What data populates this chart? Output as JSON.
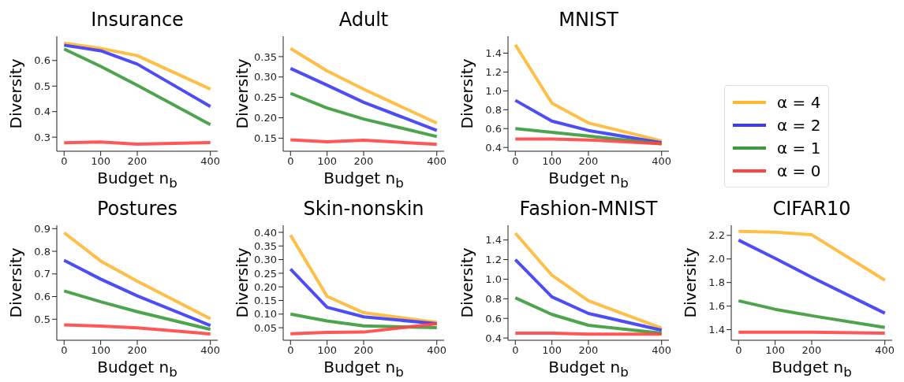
{
  "chart_data": [
    {
      "type": "line",
      "title": "Insurance",
      "xlabel": "Budget  n$_{b}$",
      "ylabel": "Diversity",
      "x": [
        0,
        100,
        200,
        400
      ],
      "xlim": [
        -20,
        420
      ],
      "xticks": [
        0,
        100,
        200,
        400
      ],
      "ylim": [
        0.245,
        0.695
      ],
      "yticks": [
        0.3,
        0.4,
        0.5,
        0.6
      ],
      "series": [
        {
          "color": "#ffb733",
          "values": [
            0.668,
            0.647,
            0.619,
            0.488
          ]
        },
        {
          "color": "#3a3af5",
          "values": [
            0.66,
            0.638,
            0.586,
            0.42
          ]
        },
        {
          "color": "#3a9a3a",
          "values": [
            0.645,
            0.577,
            0.503,
            0.349
          ]
        },
        {
          "color": "#ff4444",
          "values": [
            0.278,
            0.281,
            0.273,
            0.279
          ]
        }
      ]
    },
    {
      "type": "line",
      "title": "Adult",
      "xlabel": "Budget  n$_{b}$",
      "ylabel": "Diversity",
      "x": [
        0,
        100,
        200,
        400
      ],
      "xlim": [
        -20,
        420
      ],
      "xticks": [
        0,
        100,
        200,
        400
      ],
      "ylim": [
        0.118,
        0.4
      ],
      "yticks": [
        0.15,
        {
          "value": 0.2,
          "label": "0.20"
        },
        0.25,
        {
          "value": 0.3,
          "label": "0.30"
        },
        0.35
      ],
      "series": [
        {
          "color": "#ffb733",
          "values": [
            0.37,
            0.315,
            0.27,
            0.187
          ]
        },
        {
          "color": "#3a3af5",
          "values": [
            0.321,
            0.28,
            0.238,
            0.169
          ]
        },
        {
          "color": "#3a9a3a",
          "values": [
            0.26,
            0.224,
            0.197,
            0.154
          ]
        },
        {
          "color": "#ff4444",
          "values": [
            0.146,
            0.141,
            0.145,
            0.135
          ]
        }
      ]
    },
    {
      "type": "line",
      "title": "MNIST",
      "xlabel": "Budget  n$_{b}$",
      "ylabel": "Diversity",
      "legend": "right",
      "x": [
        0,
        100,
        200,
        400
      ],
      "xlim": [
        -20,
        420
      ],
      "xticks": [
        0,
        100,
        200,
        400
      ],
      "ylim": [
        0.36,
        1.58
      ],
      "yticks": [
        0.4,
        0.6,
        0.8,
        {
          "value": 1,
          "label": "1.0"
        },
        1.2,
        1.4
      ],
      "series": [
        {
          "name": "α = 4",
          "color": "#ffb733",
          "values": [
            1.49,
            0.87,
            0.66,
            0.47
          ]
        },
        {
          "name": "α = 2",
          "color": "#3a3af5",
          "values": [
            0.9,
            0.68,
            0.58,
            0.45
          ]
        },
        {
          "name": "α = 1",
          "color": "#3a9a3a",
          "values": [
            0.6,
            0.56,
            0.52,
            0.44
          ]
        },
        {
          "name": "α = 0",
          "color": "#ff4444",
          "values": [
            0.49,
            0.49,
            0.48,
            0.44
          ]
        }
      ]
    },
    {
      "type": "line",
      "title": "Postures",
      "xlabel": "Budget  n$_{b}$",
      "ylabel": "Diversity",
      "x": [
        0,
        100,
        200,
        400
      ],
      "xlim": [
        -20,
        420
      ],
      "xticks": [
        0,
        100,
        200,
        400
      ],
      "ylim": [
        0.407,
        0.915
      ],
      "yticks": [
        0.5,
        0.6,
        0.7,
        0.8,
        0.9
      ],
      "series": [
        {
          "color": "#ffb733",
          "values": [
            0.882,
            0.757,
            0.668,
            0.502
          ]
        },
        {
          "color": "#3a3af5",
          "values": [
            0.76,
            0.677,
            0.603,
            0.472
          ]
        },
        {
          "color": "#3a9a3a",
          "values": [
            0.625,
            0.577,
            0.533,
            0.455
          ]
        },
        {
          "color": "#ff4444",
          "values": [
            0.475,
            0.47,
            0.462,
            0.435
          ]
        }
      ]
    },
    {
      "type": "line",
      "title": "Skin-nonskin",
      "xlabel": "Budget  n$_{b}$",
      "ylabel": "Diversity",
      "x": [
        0,
        100,
        200,
        400
      ],
      "xlim": [
        -20,
        420
      ],
      "xticks": [
        0,
        100,
        200,
        400
      ],
      "ylim": [
        0.004,
        0.426
      ],
      "yticks": [
        0.05,
        {
          "value": 0.1,
          "label": "0.10"
        },
        0.15,
        {
          "value": 0.2,
          "label": "0.20"
        },
        0.25,
        {
          "value": 0.3,
          "label": "0.30"
        },
        0.35,
        {
          "value": 0.4,
          "label": "0.40"
        }
      ],
      "series": [
        {
          "color": "#ffb733",
          "values": [
            0.39,
            0.165,
            0.105,
            0.07
          ]
        },
        {
          "color": "#3a3af5",
          "values": [
            0.265,
            0.125,
            0.09,
            0.065
          ]
        },
        {
          "color": "#3a9a3a",
          "values": [
            0.1,
            0.075,
            0.057,
            0.05
          ]
        },
        {
          "color": "#ff4444",
          "values": [
            0.028,
            0.033,
            0.034,
            0.065
          ]
        }
      ]
    },
    {
      "type": "line",
      "title": "Fashion-MNIST",
      "xlabel": "Budget  n$_{b}$",
      "ylabel": "Diversity",
      "x": [
        0,
        100,
        200,
        400
      ],
      "xlim": [
        -20,
        420
      ],
      "xticks": [
        0,
        100,
        200,
        400
      ],
      "ylim": [
        0.377,
        1.55
      ],
      "yticks": [
        0.4,
        0.6,
        0.8,
        {
          "value": 1,
          "label": "1.0"
        },
        1.2,
        1.4
      ],
      "series": [
        {
          "color": "#ffb733",
          "values": [
            1.47,
            1.04,
            0.78,
            0.5
          ]
        },
        {
          "color": "#3a3af5",
          "values": [
            1.2,
            0.82,
            0.65,
            0.48
          ]
        },
        {
          "color": "#3a9a3a",
          "values": [
            0.81,
            0.64,
            0.53,
            0.45
          ]
        },
        {
          "color": "#ff4444",
          "values": [
            0.45,
            0.45,
            0.44,
            0.44
          ]
        }
      ]
    },
    {
      "type": "line",
      "title": "CIFAR10",
      "xlabel": "Budget  n$_{b}$",
      "ylabel": "Diversity",
      "x": [
        0,
        100,
        200,
        400
      ],
      "xlim": [
        -20,
        420
      ],
      "xticks": [
        0,
        100,
        200,
        400
      ],
      "ylim": [
        1.31,
        2.286
      ],
      "yticks": [
        1.4,
        1.6,
        1.8,
        {
          "value": 2,
          "label": "2.0"
        },
        2.2
      ],
      "series": [
        {
          "color": "#ffb733",
          "values": [
            2.235,
            2.228,
            2.205,
            1.82
          ]
        },
        {
          "color": "#3a3af5",
          "values": [
            2.16,
            2.005,
            1.845,
            1.54
          ]
        },
        {
          "color": "#3a9a3a",
          "values": [
            1.645,
            1.573,
            1.518,
            1.418
          ]
        },
        {
          "color": "#ff4444",
          "values": [
            1.378,
            1.378,
            1.378,
            1.37
          ]
        }
      ]
    }
  ]
}
